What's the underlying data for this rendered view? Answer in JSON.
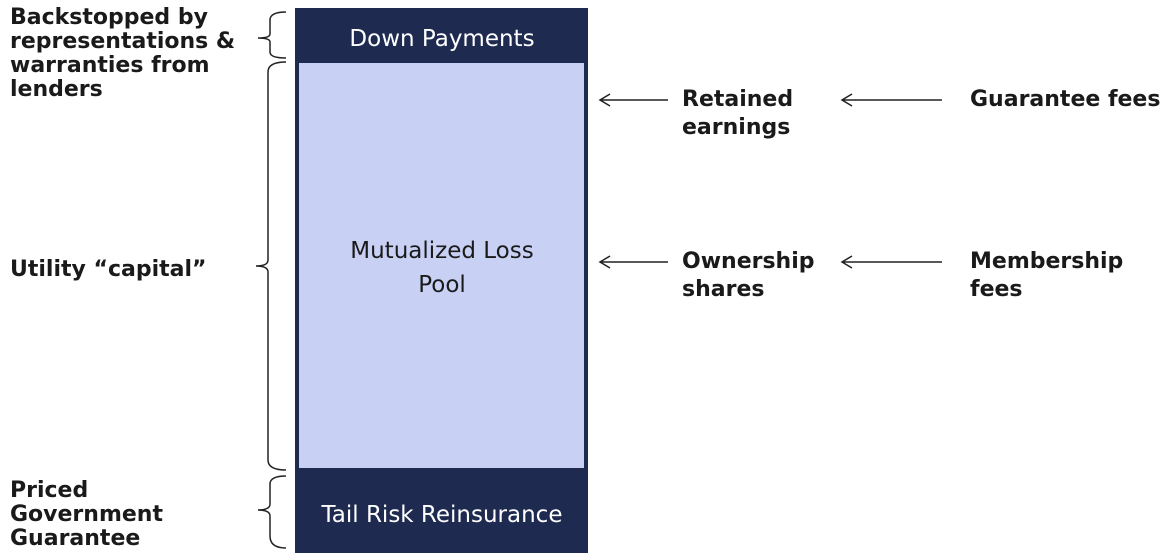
{
  "blocks": {
    "top": "Down Payments",
    "middle": [
      "Mutualized Loss",
      "Pool"
    ],
    "bottom": "Tail Risk Reinsurance"
  },
  "left_labels": {
    "top": [
      "Backstopped by",
      "representations &",
      "warranties from",
      "lenders"
    ],
    "middle": "Utility “capital”",
    "bottom": [
      "Priced",
      "Government",
      "Guarantee"
    ]
  },
  "sources": [
    {
      "inner": [
        "Retained",
        "earnings"
      ],
      "outer": [
        "Guarantee fees"
      ]
    },
    {
      "inner": [
        "Ownership",
        "shares"
      ],
      "outer": [
        "Membership",
        "fees"
      ]
    }
  ]
}
